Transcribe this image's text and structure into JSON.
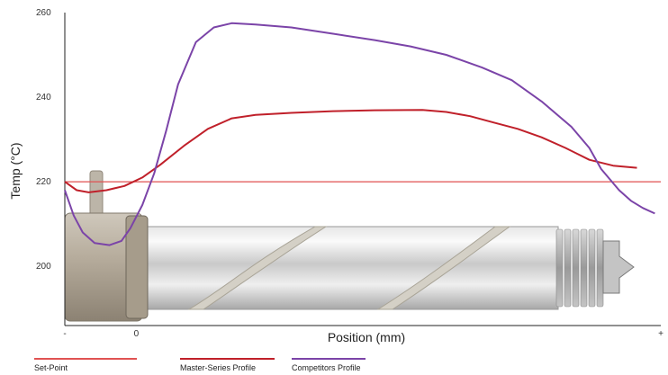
{
  "chart_data": {
    "type": "line",
    "xlabel": "Position (mm)",
    "ylabel": "Temp (°C)",
    "ylim": [
      186,
      260
    ],
    "yticks": [
      200,
      220,
      240,
      260
    ],
    "xlim": [
      0,
      100
    ],
    "xtick_labels": [
      {
        "x": 0,
        "label": "-"
      },
      {
        "x": 12,
        "label": "0"
      },
      {
        "x": 100,
        "label": "+"
      }
    ],
    "legend_position": "bottom-left",
    "colors": {
      "set_point": "#e05252",
      "master": "#c0202a",
      "competitor": "#7b44a8"
    },
    "series": [
      {
        "name": "Set-Point",
        "key": "set_point",
        "x": [
          0,
          100
        ],
        "values": [
          220,
          220
        ]
      },
      {
        "name": "Master-Series Profile",
        "key": "master",
        "x": [
          0,
          2,
          4,
          7,
          10,
          13,
          16,
          20,
          24,
          28,
          32,
          38,
          45,
          52,
          60,
          64,
          68,
          72,
          76,
          80,
          84,
          88,
          92,
          96
        ],
        "values": [
          220,
          218,
          217.5,
          218,
          219,
          221,
          224,
          228.5,
          232.5,
          235,
          235.8,
          236.3,
          236.7,
          236.9,
          237,
          236.5,
          235.5,
          234,
          232.5,
          230.5,
          228,
          225.2,
          223.8,
          223.3
        ]
      },
      {
        "name": "Competitors Profile",
        "key": "competitor",
        "x": [
          0,
          1.5,
          3,
          5,
          7.5,
          9.5,
          11,
          13,
          15,
          17,
          19,
          22,
          25,
          28,
          32,
          38,
          45,
          52,
          58,
          64,
          70,
          75,
          80,
          85,
          88,
          90,
          93,
          95,
          97,
          99
        ],
        "values": [
          218,
          212,
          208,
          205.5,
          205,
          206,
          209,
          214.5,
          222,
          232,
          243,
          253,
          256.5,
          257.5,
          257.2,
          256.5,
          255,
          253.5,
          252,
          250,
          247,
          244,
          239,
          233,
          228,
          223,
          218,
          215.5,
          213.8,
          212.5
        ]
      }
    ]
  }
}
